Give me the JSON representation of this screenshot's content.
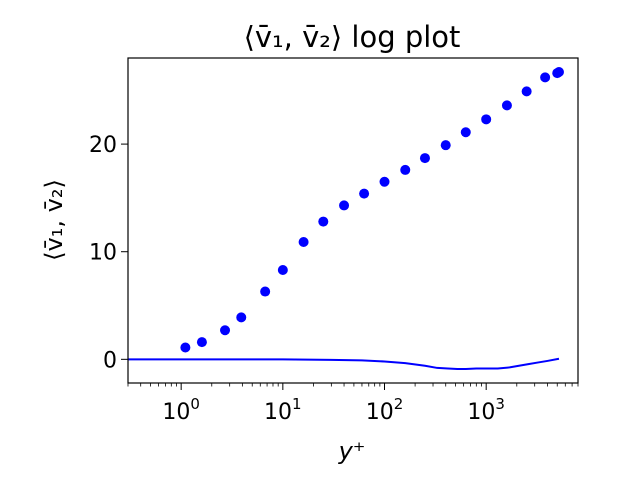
{
  "chart_data": {
    "type": "scatter",
    "title": "⟨v̄₁, v̄₂⟩ log plot",
    "xlabel": "y⁺",
    "ylabel": "⟨v̄₁, v̄₂⟩",
    "xscale": "log",
    "xlim": [
      0.3,
      8000
    ],
    "ylim": [
      -2.2,
      28
    ],
    "x_ticks": [
      {
        "value": 1,
        "base": "10",
        "exp": "0"
      },
      {
        "value": 10,
        "base": "10",
        "exp": "1"
      },
      {
        "value": 100,
        "base": "10",
        "exp": "2"
      },
      {
        "value": 1000,
        "base": "10",
        "exp": "3"
      }
    ],
    "y_ticks": [
      {
        "value": 0,
        "label": "0"
      },
      {
        "value": 10,
        "label": "10"
      },
      {
        "value": 20,
        "label": "20"
      }
    ],
    "grid": false,
    "color": "#0000ff",
    "series": [
      {
        "kind": "points",
        "x": [
          1.1,
          1.6,
          2.7,
          3.9,
          6.7,
          10,
          16,
          25,
          40,
          63,
          100,
          160,
          250,
          400,
          630,
          1000,
          1600,
          2500,
          3800,
          5000,
          5200
        ],
        "y": [
          1.1,
          1.6,
          2.7,
          3.9,
          6.3,
          8.3,
          10.9,
          12.8,
          14.3,
          15.4,
          16.5,
          17.6,
          18.7,
          19.9,
          21.1,
          22.3,
          23.6,
          24.9,
          26.2,
          26.6,
          26.7
        ]
      },
      {
        "kind": "line",
        "x": [
          0.3,
          1,
          3,
          10,
          30,
          60,
          100,
          160,
          250,
          330,
          420,
          520,
          630,
          800,
          1000,
          1300,
          1700,
          2100,
          2600,
          3200,
          4000,
          5200
        ],
        "y": [
          0.0,
          0.0,
          0.0,
          0.0,
          -0.05,
          -0.1,
          -0.2,
          -0.35,
          -0.6,
          -0.8,
          -0.85,
          -0.9,
          -0.9,
          -0.85,
          -0.85,
          -0.85,
          -0.75,
          -0.6,
          -0.45,
          -0.3,
          -0.15,
          0.05
        ]
      }
    ]
  }
}
